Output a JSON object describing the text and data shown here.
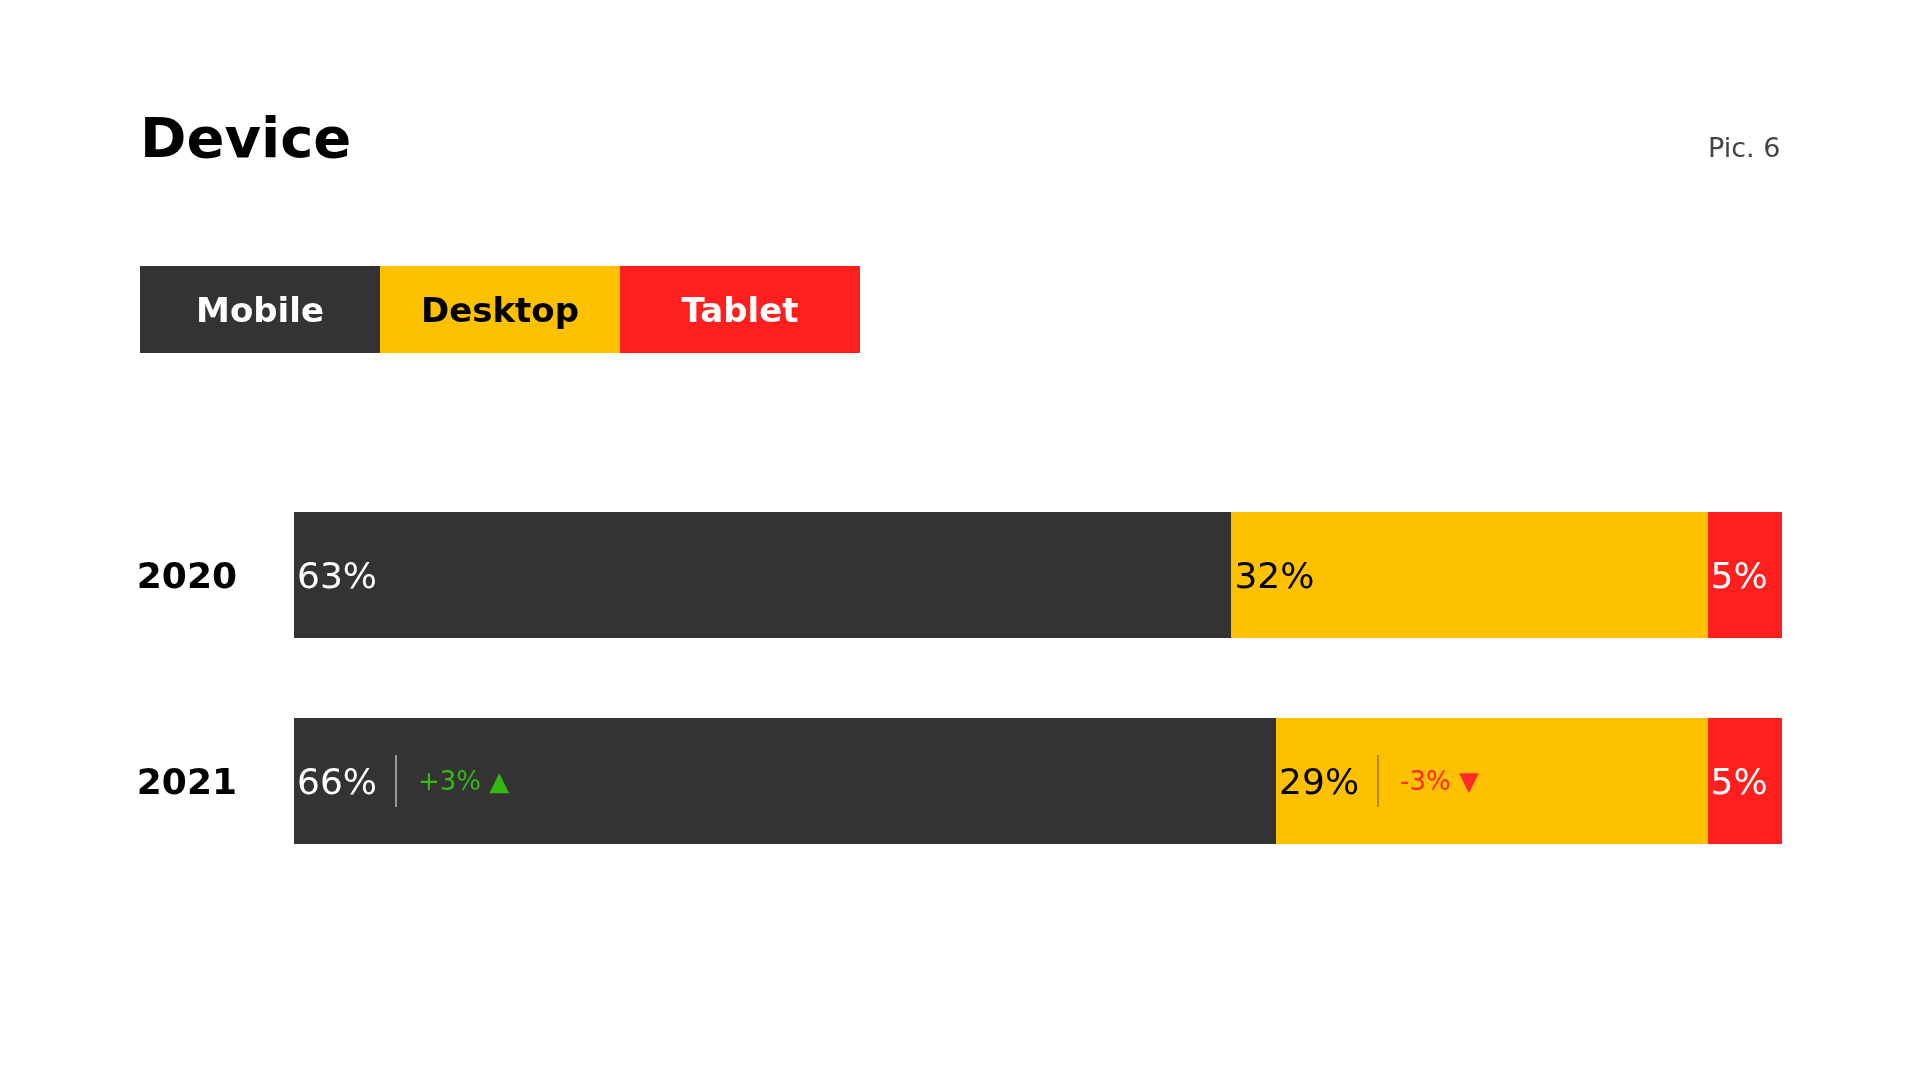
{
  "chart_data": {
    "type": "bar",
    "orientation": "horizontal",
    "stacked": true,
    "title": "Device",
    "categories": [
      "2020",
      "2021"
    ],
    "series": [
      {
        "name": "Mobile",
        "color": "#333333",
        "values": [
          63,
          66
        ],
        "value_labels": [
          "63%",
          "66%"
        ]
      },
      {
        "name": "Desktop",
        "color": "#fdc100",
        "values": [
          32,
          29
        ],
        "value_labels": [
          "32%",
          "29%"
        ]
      },
      {
        "name": "Tablet",
        "color": "#ff1f1f",
        "values": [
          5,
          5
        ],
        "value_labels": [
          "5%",
          "5%"
        ]
      }
    ],
    "xlim": [
      0,
      100
    ],
    "tick_labels": "y",
    "legend": "top left",
    "annotations": [
      "Pic. 6",
      "+3% ▲",
      "-3% ▼"
    ]
  }
}
